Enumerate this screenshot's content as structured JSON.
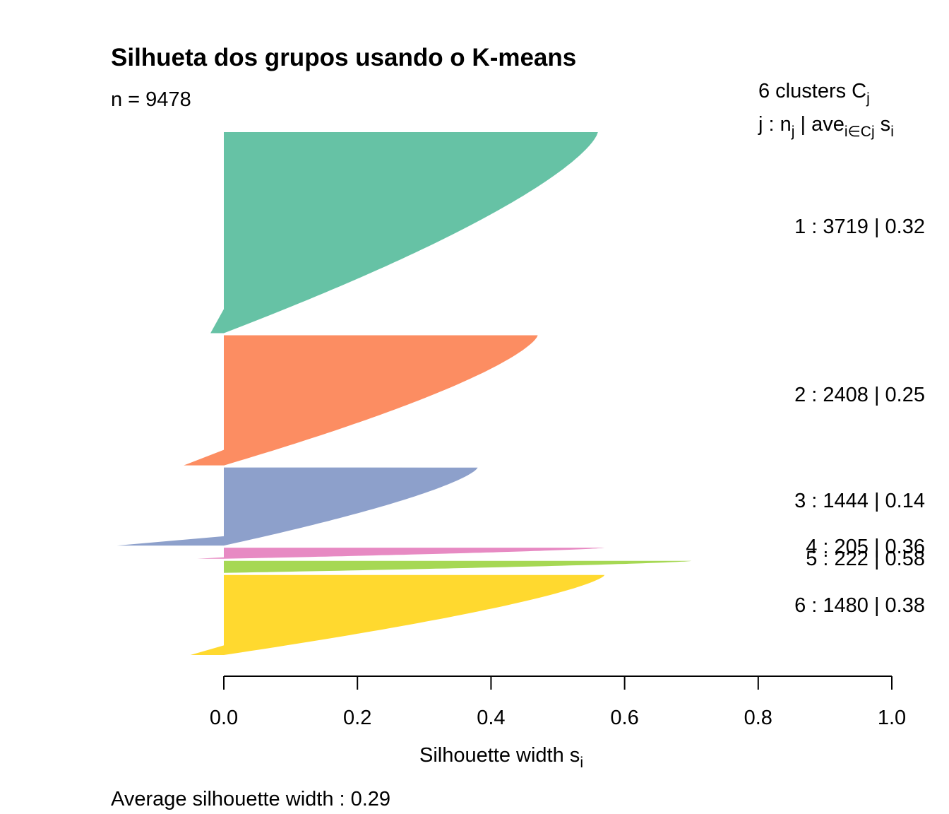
{
  "chart_data": {
    "type": "silhouette",
    "title": "Silhueta dos grupos usando o K-means",
    "n_label": "n = 9478",
    "header": {
      "k_text": "6  clusters  C",
      "k_sub": "j",
      "legend_j": "j :  n",
      "legend_j_sub": "j",
      "legend_ave": " | ave",
      "legend_ave_sub": "i∈Cj",
      "legend_s": "  s",
      "legend_s_sub": "i"
    },
    "xlabel": "Silhouette width s",
    "xlabel_sub": "i",
    "xlim": [
      0.0,
      1.0
    ],
    "xticks": [
      0.0,
      0.2,
      0.4,
      0.6,
      0.8,
      1.0
    ],
    "xtick_labels": [
      "0.0",
      "0.2",
      "0.4",
      "0.6",
      "0.8",
      "1.0"
    ],
    "footer": "Average silhouette width :  0.29",
    "clusters": [
      {
        "j": 1,
        "label": "1 :   3719  |  0.32",
        "n": 3719,
        "avg": 0.32,
        "max": 0.56,
        "min": -0.02,
        "color": "#66C2A5"
      },
      {
        "j": 2,
        "label": "2 :   2408  |  0.25",
        "n": 2408,
        "avg": 0.25,
        "max": 0.47,
        "min": -0.06,
        "color": "#FC8D62"
      },
      {
        "j": 3,
        "label": "3 :   1444  |  0.14",
        "n": 1444,
        "avg": 0.14,
        "max": 0.38,
        "min": -0.16,
        "color": "#8DA0CB"
      },
      {
        "j": 4,
        "label": "4 :   205  |  0.36",
        "n": 205,
        "avg": 0.36,
        "max": 0.57,
        "min": -0.04,
        "color": "#E78AC3"
      },
      {
        "j": 5,
        "label": "5 :   222  |  0.58",
        "n": 222,
        "avg": 0.58,
        "max": 0.7,
        "min": 0.0,
        "color": "#A6D854"
      },
      {
        "j": 6,
        "label": "6 :  1480  |  0.38",
        "n": 1480,
        "avg": 0.38,
        "max": 0.57,
        "min": -0.05,
        "color": "#FFD92F"
      }
    ]
  }
}
